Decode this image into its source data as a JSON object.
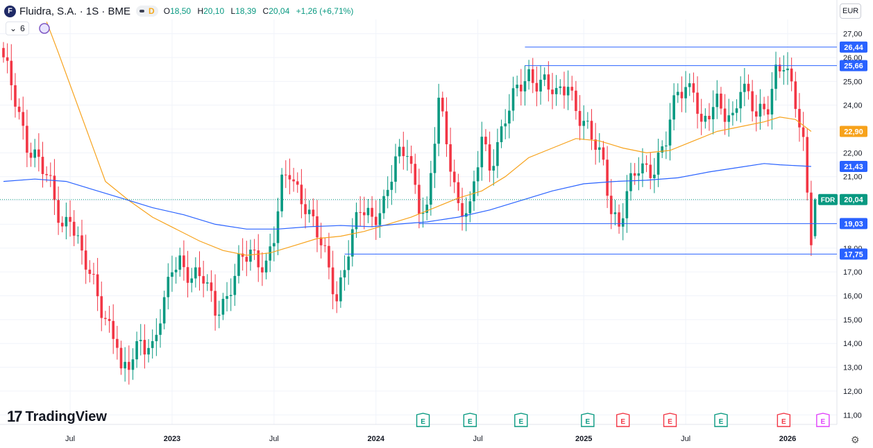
{
  "header": {
    "logo_letter": "F",
    "symbol": "Fluidra, S.A. · 1S · BME",
    "interval_badge": "D",
    "open_label": "O",
    "open": "18,50",
    "high_label": "H",
    "high": "20,10",
    "low_label": "L",
    "low": "18,39",
    "close_label": "C",
    "close": "20,04",
    "change": "+1,26 (+6,71%)"
  },
  "indicator_toggle": {
    "chevron": "⌄",
    "count": "6"
  },
  "currency": "EUR",
  "brand": {
    "mark": "17",
    "name": "TradingView"
  },
  "settings_icon": "⚙",
  "colors": {
    "up": "#089981",
    "down": "#f23645",
    "ma_fast": "#f7a21b",
    "ma_slow": "#2962ff",
    "hline": "#2962ff",
    "grid": "#f0f3fa"
  },
  "chart_data": {
    "type": "candlestick",
    "title": "Fluidra, S.A. · 1S · BME",
    "ylabel": "EUR",
    "ylim": [
      10.6,
      27.6
    ],
    "y_ticks": [
      11,
      12,
      13,
      14,
      15,
      16,
      17,
      18,
      19,
      20,
      21,
      22,
      23,
      24,
      25,
      26,
      27
    ],
    "y_tick_labels": [
      "11,00",
      "12,00",
      "13,00",
      "14,00",
      "15,00",
      "16,00",
      "17,00",
      "18,00",
      "19,00",
      "20,00",
      "21,00",
      "22,00",
      "23,00",
      "24,00",
      "25,00",
      "26,00",
      "27,00"
    ],
    "x_ticks": [
      {
        "label": "Jul",
        "week": 17
      },
      {
        "label": "2023",
        "week": 43
      },
      {
        "label": "Jul",
        "week": 69
      },
      {
        "label": "2024",
        "week": 95
      },
      {
        "label": "Jul",
        "week": 121
      },
      {
        "label": "2025",
        "week": 148
      },
      {
        "label": "Jul",
        "week": 174
      },
      {
        "label": "2026",
        "week": 200
      }
    ],
    "weeks_total": 210,
    "ohlc_keypoints": [
      [
        0,
        25.8
      ],
      [
        3,
        24.2
      ],
      [
        6,
        22.5
      ],
      [
        9,
        21.6
      ],
      [
        12,
        20.5
      ],
      [
        15,
        19.0
      ],
      [
        17,
        19.5
      ],
      [
        20,
        17.5
      ],
      [
        23,
        16.5
      ],
      [
        26,
        15.2
      ],
      [
        29,
        14.0
      ],
      [
        30,
        12.5
      ],
      [
        32,
        13.0
      ],
      [
        35,
        14.3
      ],
      [
        38,
        13.8
      ],
      [
        41,
        15.5
      ],
      [
        43,
        17.2
      ],
      [
        45,
        17.6
      ],
      [
        48,
        16.8
      ],
      [
        51,
        16.6
      ],
      [
        54,
        15.5
      ],
      [
        57,
        16.0
      ],
      [
        60,
        17.2
      ],
      [
        63,
        17.8
      ],
      [
        67,
        17.4
      ],
      [
        69,
        18.4
      ],
      [
        71,
        20.5
      ],
      [
        73,
        21.2
      ],
      [
        77,
        19.9
      ],
      [
        80,
        18.5
      ],
      [
        82,
        17.6
      ],
      [
        85,
        16.0
      ],
      [
        88,
        18.0
      ],
      [
        91,
        19.5
      ],
      [
        94,
        19.3
      ],
      [
        97,
        20.0
      ],
      [
        100,
        21.5
      ],
      [
        103,
        22.1
      ],
      [
        106,
        20.0
      ],
      [
        108,
        19.5
      ],
      [
        111,
        24.0
      ],
      [
        113,
        22.5
      ],
      [
        116,
        19.9
      ],
      [
        119,
        19.5
      ],
      [
        122,
        22.5
      ],
      [
        124,
        21.5
      ],
      [
        128,
        23.5
      ],
      [
        131,
        24.5
      ],
      [
        134,
        25.3
      ],
      [
        138,
        25.0
      ],
      [
        141,
        24.2
      ],
      [
        144,
        25.0
      ],
      [
        146,
        24.0
      ],
      [
        150,
        22.5
      ],
      [
        153,
        21.5
      ],
      [
        155,
        19.8
      ],
      [
        157,
        19.0
      ],
      [
        159,
        20.2
      ],
      [
        162,
        21.3
      ],
      [
        166,
        21.5
      ],
      [
        169,
        22.5
      ],
      [
        172,
        24.5
      ],
      [
        176,
        25.0
      ],
      [
        178,
        23.0
      ],
      [
        182,
        24.0
      ],
      [
        186,
        23.6
      ],
      [
        188,
        24.8
      ],
      [
        192,
        23.5
      ],
      [
        195,
        24.2
      ],
      [
        197,
        25.5
      ],
      [
        199,
        25.6
      ],
      [
        202,
        24.0
      ],
      [
        204,
        22.5
      ],
      [
        205,
        20.5
      ],
      [
        206,
        18.7
      ],
      [
        207,
        20.04
      ]
    ],
    "last_candle": {
      "open": 18.5,
      "high": 20.1,
      "low": 18.39,
      "close": 20.04
    },
    "series": [
      {
        "name": "MA fast",
        "color": "#f7a21b",
        "points": [
          [
            11,
            27.5
          ],
          [
            14,
            26.2
          ],
          [
            20,
            23.5
          ],
          [
            26,
            20.8
          ],
          [
            32,
            20.0
          ],
          [
            38,
            19.3
          ],
          [
            44,
            18.8
          ],
          [
            50,
            18.3
          ],
          [
            56,
            17.9
          ],
          [
            62,
            17.7
          ],
          [
            68,
            17.8
          ],
          [
            74,
            18.1
          ],
          [
            80,
            18.4
          ],
          [
            86,
            18.5
          ],
          [
            92,
            18.7
          ],
          [
            98,
            19.0
          ],
          [
            104,
            19.3
          ],
          [
            110,
            19.7
          ],
          [
            116,
            20.1
          ],
          [
            122,
            20.4
          ],
          [
            128,
            21.0
          ],
          [
            134,
            21.8
          ],
          [
            140,
            22.2
          ],
          [
            146,
            22.6
          ],
          [
            152,
            22.5
          ],
          [
            158,
            22.2
          ],
          [
            164,
            22.0
          ],
          [
            170,
            22.1
          ],
          [
            176,
            22.5
          ],
          [
            182,
            22.9
          ],
          [
            188,
            23.1
          ],
          [
            194,
            23.3
          ],
          [
            198,
            23.5
          ],
          [
            202,
            23.4
          ],
          [
            206,
            22.9
          ]
        ]
      },
      {
        "name": "MA slow",
        "color": "#2962ff",
        "points": [
          [
            0,
            20.8
          ],
          [
            8,
            20.9
          ],
          [
            16,
            20.8
          ],
          [
            22,
            20.5
          ],
          [
            30,
            20.1
          ],
          [
            38,
            19.7
          ],
          [
            46,
            19.4
          ],
          [
            54,
            19.0
          ],
          [
            62,
            18.8
          ],
          [
            70,
            18.8
          ],
          [
            78,
            18.9
          ],
          [
            86,
            18.95
          ],
          [
            94,
            18.9
          ],
          [
            100,
            19.0
          ],
          [
            108,
            19.1
          ],
          [
            116,
            19.3
          ],
          [
            124,
            19.6
          ],
          [
            132,
            20.0
          ],
          [
            140,
            20.4
          ],
          [
            148,
            20.7
          ],
          [
            156,
            20.8
          ],
          [
            164,
            20.85
          ],
          [
            172,
            20.95
          ],
          [
            180,
            21.2
          ],
          [
            188,
            21.4
          ],
          [
            194,
            21.55
          ],
          [
            198,
            21.5
          ],
          [
            206,
            21.43
          ]
        ]
      }
    ],
    "horizontal_lines": [
      {
        "value": 26.44,
        "label": "26,44",
        "start_week": 133
      },
      {
        "value": 25.66,
        "label": "25,66",
        "start_week": 133
      },
      {
        "value": 19.03,
        "label": "19,03",
        "start_week": 106
      },
      {
        "value": 17.75,
        "label": "17,75",
        "start_week": 87
      }
    ],
    "price_labels": [
      {
        "value": 22.9,
        "text": "22,90",
        "color": "#f7a21b"
      },
      {
        "value": 21.43,
        "text": "21,43",
        "color": "#2962ff"
      },
      {
        "value": 20.04,
        "text": "20,04",
        "color": "#089981",
        "tag": "FDR"
      }
    ],
    "earnings_markers": [
      {
        "week": 107,
        "text": "E",
        "kind": "positive"
      },
      {
        "week": 119,
        "text": "E",
        "kind": "positive"
      },
      {
        "week": 132,
        "text": "E",
        "kind": "positive"
      },
      {
        "week": 149,
        "text": "E",
        "kind": "positive"
      },
      {
        "week": 158,
        "text": "E",
        "kind": "negative"
      },
      {
        "week": 170,
        "text": "E",
        "kind": "negative"
      },
      {
        "week": 183,
        "text": "E",
        "kind": "positive"
      },
      {
        "week": 199,
        "text": "E",
        "kind": "negative"
      },
      {
        "week": 209,
        "text": "E",
        "kind": "upcoming"
      }
    ]
  }
}
